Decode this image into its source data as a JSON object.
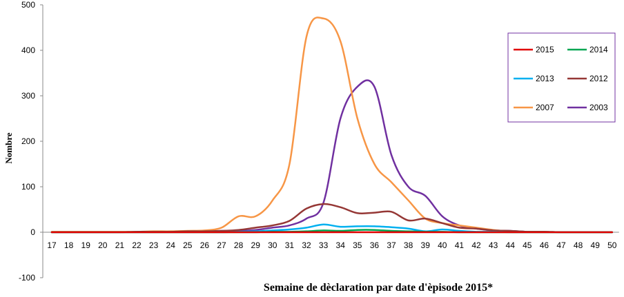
{
  "chart_data": {
    "type": "line",
    "xlabel": "Semaine de  dèclaration par date d'èpisode 2015*",
    "ylabel": "Nombre",
    "ylim": [
      -100,
      500
    ],
    "yticks": [
      -100,
      0,
      100,
      200,
      300,
      400,
      500
    ],
    "x": [
      17,
      18,
      19,
      20,
      21,
      22,
      23,
      24,
      25,
      26,
      27,
      28,
      29,
      30,
      31,
      32,
      33,
      34,
      35,
      36,
      37,
      38,
      39,
      40,
      41,
      42,
      43,
      44,
      45,
      46,
      47,
      48,
      49,
      50
    ],
    "grid": false,
    "legend_position": "right",
    "series": [
      {
        "name": "2015",
        "color": "#e00000",
        "values": [
          0,
          0,
          0,
          0,
          0,
          0,
          0,
          0,
          0,
          0,
          0,
          0,
          0,
          0,
          0,
          0,
          0,
          0,
          0,
          0,
          0,
          0,
          0,
          0,
          0,
          0,
          0,
          0,
          0,
          0,
          0,
          0,
          0,
          0
        ]
      },
      {
        "name": "2014",
        "color": "#00a651",
        "values": [
          0,
          0,
          0,
          0,
          0,
          0,
          0,
          0,
          0,
          0,
          0,
          0,
          0,
          1,
          1,
          2,
          4,
          3,
          5,
          5,
          3,
          2,
          1,
          1,
          0,
          0,
          0,
          0,
          0,
          0,
          0,
          0,
          0,
          0
        ]
      },
      {
        "name": "2013",
        "color": "#00b0f0",
        "values": [
          0,
          0,
          0,
          0,
          0,
          0,
          0,
          0,
          0,
          0,
          0,
          1,
          2,
          4,
          6,
          10,
          17,
          12,
          13,
          13,
          11,
          8,
          2,
          6,
          3,
          1,
          1,
          0,
          0,
          0,
          0,
          0,
          0,
          0
        ]
      },
      {
        "name": "2012",
        "color": "#953735",
        "values": [
          0,
          0,
          0,
          0,
          0,
          1,
          1,
          1,
          2,
          2,
          3,
          5,
          10,
          15,
          25,
          52,
          62,
          55,
          42,
          43,
          45,
          26,
          30,
          20,
          10,
          8,
          4,
          3,
          1,
          1,
          0,
          0,
          0,
          0
        ]
      },
      {
        "name": "2007",
        "color": "#f79646",
        "values": [
          1,
          1,
          1,
          1,
          1,
          1,
          2,
          2,
          3,
          4,
          10,
          35,
          35,
          70,
          150,
          430,
          470,
          420,
          250,
          150,
          110,
          70,
          30,
          20,
          15,
          10,
          5,
          2,
          1,
          1,
          0,
          0,
          0,
          0
        ]
      },
      {
        "name": "2003",
        "color": "#7030a0",
        "values": [
          0,
          0,
          0,
          0,
          0,
          1,
          1,
          1,
          2,
          2,
          3,
          3,
          5,
          10,
          15,
          30,
          65,
          250,
          320,
          320,
          170,
          100,
          80,
          35,
          15,
          8,
          4,
          3,
          1,
          1,
          0,
          0,
          0,
          0
        ]
      }
    ]
  }
}
